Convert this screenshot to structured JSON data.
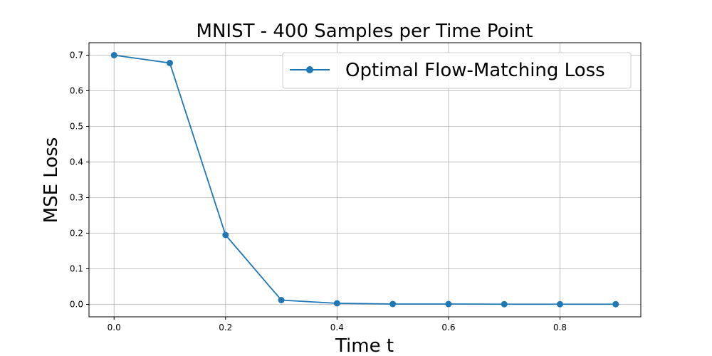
{
  "chart_data": {
    "type": "line",
    "title": "MNIST - 400 Samples per Time Point",
    "xlabel": "Time t",
    "ylabel": "MSE Loss",
    "xlim": [
      -0.045,
      0.945
    ],
    "ylim": [
      -0.035,
      0.735
    ],
    "xticks": [
      0.0,
      0.2,
      0.4,
      0.6,
      0.8
    ],
    "xtick_labels": [
      "0.0",
      "0.2",
      "0.4",
      "0.6",
      "0.8"
    ],
    "yticks": [
      0.0,
      0.1,
      0.2,
      0.3,
      0.4,
      0.5,
      0.6,
      0.7
    ],
    "ytick_labels": [
      "0.0",
      "0.1",
      "0.2",
      "0.3",
      "0.4",
      "0.5",
      "0.6",
      "0.7"
    ],
    "grid": true,
    "legend_position": "top-right",
    "series": [
      {
        "name": "Optimal Flow-Matching Loss",
        "color": "#1f77b4",
        "marker": "circle",
        "x": [
          0.0,
          0.1,
          0.2,
          0.3,
          0.4,
          0.5,
          0.6,
          0.7,
          0.8,
          0.9
        ],
        "y": [
          0.7,
          0.678,
          0.195,
          0.012,
          0.003,
          0.001,
          0.001,
          0.0005,
          0.0005,
          0.0005
        ]
      }
    ]
  }
}
